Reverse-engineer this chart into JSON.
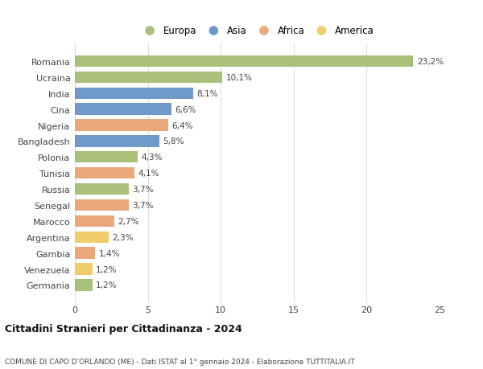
{
  "countries": [
    "Romania",
    "Ucraina",
    "India",
    "Cina",
    "Nigeria",
    "Bangladesh",
    "Polonia",
    "Tunisia",
    "Russia",
    "Senegal",
    "Marocco",
    "Argentina",
    "Gambia",
    "Venezuela",
    "Germania"
  ],
  "values": [
    23.2,
    10.1,
    8.1,
    6.6,
    6.4,
    5.8,
    4.3,
    4.1,
    3.7,
    3.7,
    2.7,
    2.3,
    1.4,
    1.2,
    1.2
  ],
  "labels": [
    "23,2%",
    "10,1%",
    "8,1%",
    "6,6%",
    "6,4%",
    "5,8%",
    "4,3%",
    "4,1%",
    "3,7%",
    "3,7%",
    "2,7%",
    "2,3%",
    "1,4%",
    "1,2%",
    "1,2%"
  ],
  "continents": [
    "Europa",
    "Europa",
    "Asia",
    "Asia",
    "Africa",
    "Asia",
    "Europa",
    "Africa",
    "Europa",
    "Africa",
    "Africa",
    "America",
    "Africa",
    "America",
    "Europa"
  ],
  "colors": {
    "Europa": "#a8c07a",
    "Asia": "#6e99c9",
    "Africa": "#e8a87c",
    "America": "#f0cc6a"
  },
  "legend_order": [
    "Europa",
    "Asia",
    "Africa",
    "America"
  ],
  "title": "Cittadini Stranieri per Cittadinanza - 2024",
  "subtitle": "COMUNE DI CAPO D'ORLANDO (ME) - Dati ISTAT al 1° gennaio 2024 - Elaborazione TUTTITALIA.IT",
  "xlim": [
    0,
    25
  ],
  "xticks": [
    0,
    5,
    10,
    15,
    20,
    25
  ],
  "background_color": "#ffffff",
  "grid_color": "#dddddd",
  "bar_height": 0.72
}
